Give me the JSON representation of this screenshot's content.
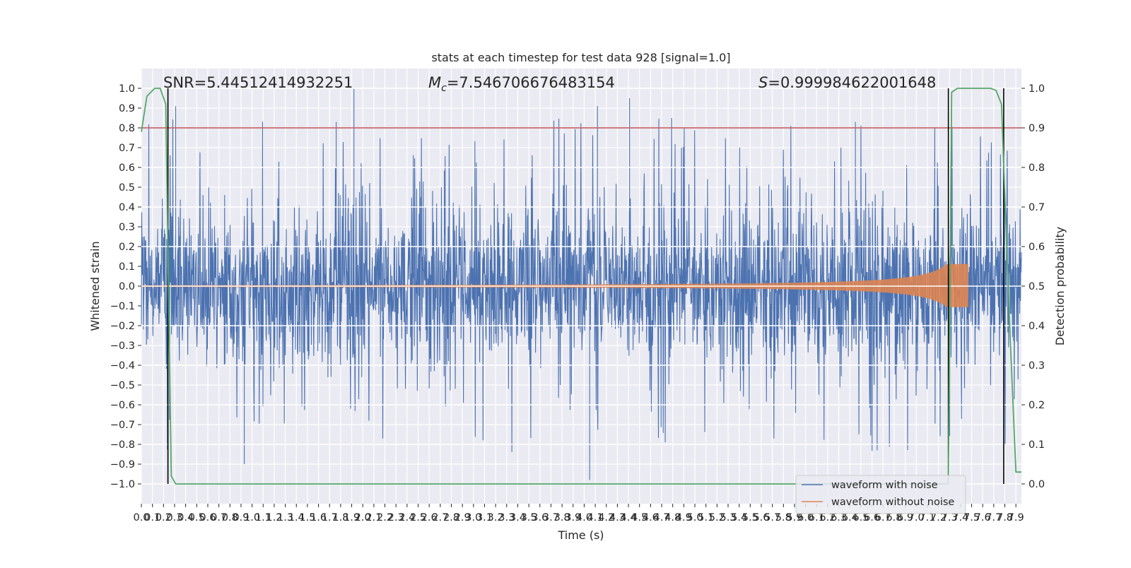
{
  "chart_data": {
    "type": "line",
    "title": "stats at each timestep for test data 928 [signal=1.0]",
    "xlabel": "Time (s)",
    "ylabel": "Whitened strain",
    "ylabel_right": "Detection probability",
    "xlim": [
      0,
      7.95
    ],
    "ylim": [
      -1.1,
      1.1
    ],
    "ylim_right": [
      -0.05,
      1.05
    ],
    "x_ticks": [
      0.0,
      0.1,
      0.2,
      0.3,
      0.4,
      0.5,
      0.6,
      0.7,
      0.8,
      0.9,
      1.0,
      1.1,
      1.2,
      1.3,
      1.4,
      1.5,
      1.6,
      1.7,
      1.8,
      1.9,
      2.0,
      2.1,
      2.2,
      2.3,
      2.4,
      2.5,
      2.6,
      2.7,
      2.8,
      2.9,
      3.0,
      3.1,
      3.2,
      3.3,
      3.4,
      3.5,
      3.6,
      3.7,
      3.8,
      3.9,
      4.0,
      4.1,
      4.2,
      4.3,
      4.4,
      4.5,
      4.6,
      4.7,
      4.8,
      4.9,
      5.0,
      5.1,
      5.2,
      5.3,
      5.4,
      5.5,
      5.6,
      5.7,
      5.8,
      5.9,
      6.0,
      6.1,
      6.2,
      6.3,
      6.4,
      6.5,
      6.6,
      6.7,
      6.8,
      6.9,
      7.0,
      7.1,
      7.2,
      7.3,
      7.4,
      7.5,
      7.6,
      7.7,
      7.8,
      7.9
    ],
    "x_tick_labels": [
      "0.0",
      "0.1",
      "0.2",
      "0.3",
      "0.4",
      "0.5",
      "0.6",
      "0.7",
      "0.8",
      "0.9",
      "1.0",
      "1.1",
      "1.2",
      "1.3",
      "1.4",
      "1.5",
      "1.6",
      "1.7",
      "1.8",
      "1.9",
      "2.0",
      "2.1",
      "2.2",
      "2.3",
      "2.4",
      "2.5",
      "2.6",
      "2.7",
      "2.8",
      "2.9",
      "3.0",
      "3.1",
      "3.2",
      "3.3",
      "3.4",
      "3.5",
      "3.6",
      "3.7",
      "3.8",
      "3.9",
      "4.0",
      "4.1",
      "4.2",
      "4.3",
      "4.4",
      "4.5",
      "4.6",
      "4.7",
      "4.8",
      "4.9",
      "5.0",
      "5.1",
      "5.2",
      "5.3",
      "5.4",
      "5.5",
      "5.6",
      "5.7",
      "5.8",
      "5.9",
      "6.0",
      "6.1",
      "6.2",
      "6.3",
      "6.4",
      "6.5",
      "6.6",
      "6.7",
      "6.8",
      "6.9",
      "7.0",
      "7.1",
      "7.2",
      "7.3",
      "7.4",
      "7.5",
      "7.6",
      "7.7",
      "7.8",
      "7.9"
    ],
    "y_ticks": [
      -1.0,
      -0.9,
      -0.8,
      -0.7,
      -0.6,
      -0.5,
      -0.4,
      -0.3,
      -0.2,
      -0.1,
      0.0,
      0.1,
      0.2,
      0.3,
      0.4,
      0.5,
      0.6,
      0.7,
      0.8,
      0.9,
      1.0
    ],
    "y_tick_labels": [
      "−1.0",
      "−0.9",
      "−0.8",
      "−0.7",
      "−0.6",
      "−0.5",
      "−0.4",
      "−0.3",
      "−0.2",
      "−0.1",
      "0.0",
      "0.1",
      "0.2",
      "0.3",
      "0.4",
      "0.5",
      "0.6",
      "0.7",
      "0.8",
      "0.9",
      "1.0"
    ],
    "y_right_ticks": [
      0.0,
      0.1,
      0.2,
      0.3,
      0.4,
      0.5,
      0.6,
      0.7,
      0.8,
      0.9,
      1.0
    ],
    "y_right_tick_labels": [
      "0.0",
      "0.1",
      "0.2",
      "0.3",
      "0.4",
      "0.5",
      "0.6",
      "0.7",
      "0.8",
      "0.9",
      "1.0"
    ],
    "annotations": {
      "snr": "SNR=5.44512414932251",
      "mc_symbol": "M",
      "mc_subscript": "c",
      "mc_value": "=7.546706676483154",
      "s_symbol": "S",
      "s_value": "=0.999984622001648"
    },
    "threshold": {
      "value": 0.9,
      "axis": "right",
      "color": "#c44e52"
    },
    "detection_windows": [
      [
        0.24,
        7.29
      ],
      [
        7.29,
        7.79
      ]
    ],
    "detection_window_lines": [
      0.24,
      7.29,
      7.79
    ],
    "detection_probability": {
      "name": "detection probability",
      "color": "#55a868",
      "x": [
        0.0,
        0.05,
        0.12,
        0.17,
        0.22,
        0.27,
        0.31,
        0.37,
        7.25,
        7.29,
        7.32,
        7.37,
        7.42,
        7.47,
        7.52,
        7.57,
        7.62,
        7.67,
        7.72,
        7.77,
        7.8,
        7.85,
        7.9,
        7.95
      ],
      "y": [
        0.89,
        0.98,
        1.0,
        1.0,
        0.96,
        0.02,
        0.0,
        0.0,
        0.0,
        0.0,
        0.99,
        1.0,
        1.0,
        1.0,
        1.0,
        1.0,
        1.0,
        1.0,
        0.995,
        0.96,
        0.73,
        0.36,
        0.03,
        0.03
      ]
    },
    "series": [
      {
        "name": "waveform with noise",
        "color": "#4c72b0",
        "kind": "noise",
        "sigma": 0.2,
        "max": 1.0,
        "min": -0.98,
        "x_range": [
          0,
          7.95
        ]
      },
      {
        "name": "waveform without noise",
        "color": "#dd8452",
        "kind": "chirp",
        "x_range": [
          0,
          7.48
        ],
        "amplitude_start": 0.004,
        "amplitude_peak": 0.15,
        "peak_time": 7.47
      }
    ],
    "legend": {
      "position": "lower-right",
      "entries": [
        "waveform with noise",
        "waveform without noise"
      ]
    },
    "grid": true
  }
}
